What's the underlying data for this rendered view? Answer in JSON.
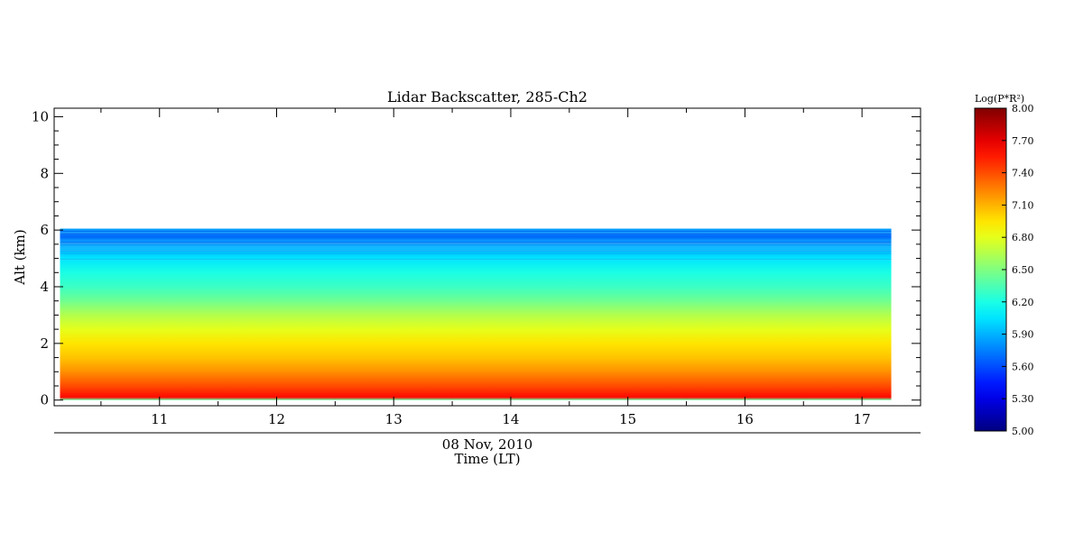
{
  "chart_data": {
    "type": "heatmap",
    "title": "Lidar Backscatter, 285-Ch2",
    "xlabel": "Time (LT)",
    "x_sublabel": "08 Nov, 2010",
    "ylabel": "Alt (km)",
    "xlim": [
      10.1,
      17.5
    ],
    "ylim": [
      -0.2,
      10.3
    ],
    "x_ticks": [
      11,
      12,
      13,
      14,
      15,
      16,
      17
    ],
    "y_ticks": [
      0,
      2,
      4,
      6,
      8,
      10
    ],
    "data_time_range": [
      10.15,
      17.25
    ],
    "data_alt_range": [
      0.0,
      6.05
    ],
    "profile": {
      "alt_km": [
        0.0,
        0.1,
        0.2,
        0.5,
        1.0,
        1.5,
        2.0,
        2.5,
        3.0,
        3.5,
        4.0,
        4.5,
        5.0,
        5.5,
        5.8,
        6.05
      ],
      "log_value": [
        6.4,
        7.6,
        7.55,
        7.4,
        7.2,
        7.05,
        6.95,
        6.8,
        6.65,
        6.45,
        6.3,
        6.2,
        6.05,
        5.85,
        5.7,
        5.85
      ]
    },
    "colorbar": {
      "label": "Log(P*R²)",
      "min": 5.0,
      "max": 8.0,
      "tick_labels": [
        "8.00",
        "7.70",
        "7.40",
        "7.10",
        "6.80",
        "6.50",
        "6.20",
        "5.90",
        "5.60",
        "5.30",
        "5.00"
      ],
      "colormap": "jet"
    },
    "grid": false,
    "legend": "colorbar-right"
  }
}
